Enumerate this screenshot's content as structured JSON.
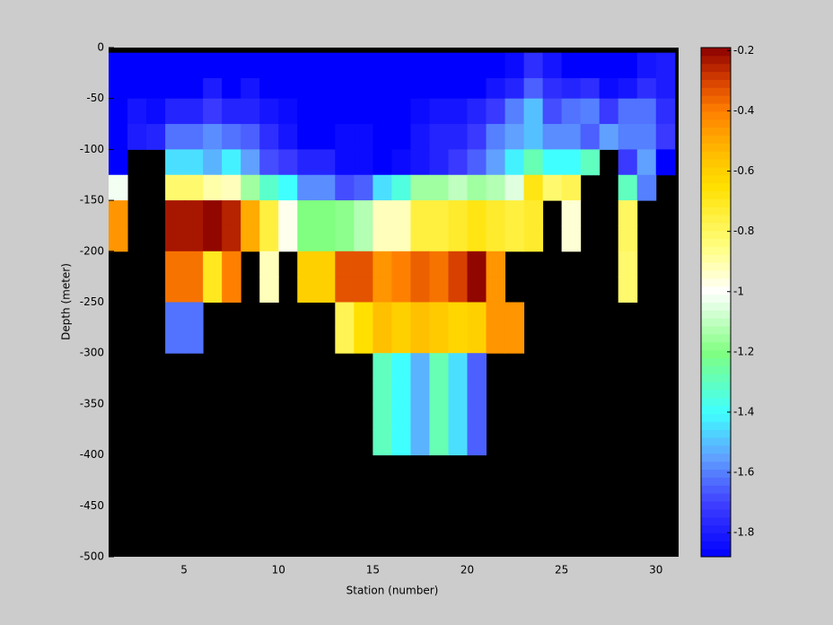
{
  "chart_data": {
    "type": "heatmap",
    "xlabel": "Station (number)",
    "ylabel": "Depth (meter)",
    "xlim": [
      1,
      31.2
    ],
    "ylim": [
      -500,
      0
    ],
    "xticks": [
      5,
      10,
      15,
      20,
      25,
      30
    ],
    "yticks": [
      0,
      -50,
      -100,
      -150,
      -200,
      -250,
      -300,
      -350,
      -400,
      -450,
      -500
    ],
    "x_edges": [
      1,
      2,
      3,
      4,
      5,
      6,
      7,
      8,
      9,
      10,
      11,
      12,
      13,
      14,
      15,
      16,
      17,
      18,
      19,
      20,
      21,
      22,
      23,
      24,
      25,
      26,
      27,
      28,
      29,
      30,
      31
    ],
    "y_edges": [
      0,
      -5,
      -30,
      -50,
      -75,
      -100,
      -125,
      -150,
      -175,
      -200,
      -225,
      -250,
      -275,
      -300,
      -325,
      -350,
      -375,
      -400
    ],
    "missing_color": "#000000",
    "clim": [
      -1.88,
      -0.19
    ],
    "colorbar_ticks": [
      -0.2,
      -0.4,
      -0.6,
      -0.8,
      -1,
      -1.2,
      -1.4,
      -1.6,
      -1.8
    ],
    "colormap": [
      [
        -1.88,
        "#0000ff"
      ],
      [
        -1.7,
        "#4040ff"
      ],
      [
        -1.55,
        "#60a0ff"
      ],
      [
        -1.4,
        "#40ffff"
      ],
      [
        -1.2,
        "#80ff80"
      ],
      [
        -1.0,
        "#ffffff"
      ],
      [
        -0.85,
        "#ffff80"
      ],
      [
        -0.65,
        "#ffe000"
      ],
      [
        -0.55,
        "#ffc000"
      ],
      [
        -0.4,
        "#ff8000"
      ],
      [
        -0.3,
        "#d84000"
      ],
      [
        -0.19,
        "#8b0000"
      ]
    ],
    "values": [
      [
        null,
        null,
        null,
        null,
        null,
        null,
        null,
        null,
        null,
        null,
        null,
        null,
        null,
        null,
        null,
        null,
        null,
        null,
        null,
        null,
        null,
        null,
        null,
        null,
        null,
        null,
        null,
        null,
        null,
        null
      ],
      [
        -1.88,
        -1.88,
        -1.88,
        -1.88,
        -1.88,
        -1.88,
        -1.88,
        -1.88,
        -1.88,
        -1.88,
        -1.88,
        -1.88,
        -1.88,
        -1.88,
        -1.88,
        -1.88,
        -1.88,
        -1.88,
        -1.88,
        -1.88,
        -1.88,
        -1.85,
        -1.75,
        -1.82,
        -1.88,
        -1.88,
        -1.88,
        -1.88,
        -1.82,
        -1.8
      ],
      [
        -1.88,
        -1.88,
        -1.88,
        -1.88,
        -1.88,
        -1.8,
        -1.88,
        -1.82,
        -1.88,
        -1.88,
        -1.88,
        -1.88,
        -1.88,
        -1.88,
        -1.88,
        -1.88,
        -1.88,
        -1.88,
        -1.88,
        -1.88,
        -1.82,
        -1.78,
        -1.65,
        -1.75,
        -1.78,
        -1.75,
        -1.85,
        -1.82,
        -1.75,
        -1.8
      ],
      [
        -1.88,
        -1.82,
        -1.85,
        -1.78,
        -1.78,
        -1.72,
        -1.78,
        -1.78,
        -1.82,
        -1.85,
        -1.88,
        -1.88,
        -1.88,
        -1.88,
        -1.88,
        -1.88,
        -1.85,
        -1.82,
        -1.82,
        -1.78,
        -1.72,
        -1.6,
        -1.5,
        -1.68,
        -1.62,
        -1.6,
        -1.72,
        -1.62,
        -1.62,
        -1.75
      ],
      [
        -1.88,
        -1.8,
        -1.78,
        -1.62,
        -1.62,
        -1.58,
        -1.62,
        -1.65,
        -1.75,
        -1.82,
        -1.88,
        -1.88,
        -1.85,
        -1.85,
        -1.88,
        -1.88,
        -1.82,
        -1.78,
        -1.78,
        -1.72,
        -1.6,
        -1.55,
        -1.5,
        -1.58,
        -1.58,
        -1.65,
        -1.55,
        -1.6,
        -1.6,
        -1.72
      ],
      [
        -1.88,
        null,
        null,
        -1.45,
        -1.45,
        -1.52,
        -1.42,
        -1.55,
        -1.68,
        -1.72,
        -1.78,
        -1.78,
        -1.85,
        -1.85,
        -1.88,
        -1.85,
        -1.82,
        -1.78,
        -1.72,
        -1.65,
        -1.55,
        -1.42,
        -1.28,
        -1.4,
        -1.4,
        -1.3,
        null,
        -1.72,
        -1.55,
        -1.88
      ],
      [
        -1.02,
        null,
        null,
        -0.82,
        -0.82,
        -0.9,
        -0.92,
        -1.15,
        -1.32,
        -1.4,
        -1.58,
        -1.58,
        -1.68,
        -1.65,
        -1.45,
        -1.35,
        -1.15,
        -1.15,
        -1.1,
        -1.15,
        -1.12,
        -1.05,
        -0.68,
        -0.82,
        -0.78,
        null,
        null,
        -1.3,
        -1.6,
        null
      ],
      [
        -0.45,
        null,
        null,
        -0.23,
        -0.23,
        -0.2,
        -0.25,
        -0.5,
        -0.75,
        -0.98,
        -1.2,
        -1.2,
        -1.18,
        -1.12,
        -0.92,
        -0.92,
        -0.75,
        -0.75,
        -0.72,
        -0.68,
        -0.72,
        -0.75,
        -0.72,
        null,
        -0.95,
        null,
        null,
        -0.8,
        null,
        null
      ],
      [
        -0.45,
        null,
        null,
        -0.23,
        -0.23,
        -0.2,
        -0.25,
        -0.5,
        -0.75,
        -0.98,
        -1.2,
        -1.2,
        -1.18,
        -1.12,
        -0.92,
        -0.92,
        -0.75,
        -0.75,
        -0.72,
        -0.68,
        -0.72,
        -0.75,
        -0.72,
        null,
        -0.95,
        null,
        null,
        -0.8,
        null,
        null
      ],
      [
        null,
        null,
        null,
        -0.38,
        -0.38,
        -0.7,
        -0.4,
        null,
        -0.92,
        null,
        -0.6,
        -0.6,
        -0.33,
        -0.33,
        -0.45,
        -0.4,
        -0.35,
        -0.38,
        -0.3,
        -0.2,
        -0.45,
        null,
        null,
        null,
        null,
        null,
        null,
        -0.82,
        null,
        null
      ],
      [
        null,
        null,
        null,
        -0.38,
        -0.38,
        -0.7,
        -0.4,
        null,
        -0.92,
        null,
        -0.6,
        -0.6,
        -0.33,
        -0.33,
        -0.45,
        -0.4,
        -0.35,
        -0.38,
        -0.3,
        -0.2,
        -0.45,
        null,
        null,
        null,
        null,
        null,
        null,
        -0.82,
        null,
        null
      ],
      [
        null,
        null,
        null,
        -1.62,
        -1.62,
        null,
        null,
        null,
        null,
        null,
        null,
        null,
        -0.78,
        -0.65,
        -0.55,
        -0.6,
        -0.55,
        -0.58,
        -0.62,
        -0.6,
        -0.45,
        -0.45,
        null,
        null,
        null,
        null,
        null,
        null,
        null,
        null
      ],
      [
        null,
        null,
        null,
        -1.62,
        -1.62,
        null,
        null,
        null,
        null,
        null,
        null,
        null,
        -0.78,
        -0.65,
        -0.55,
        -0.6,
        -0.55,
        -0.58,
        -0.62,
        -0.6,
        -0.45,
        -0.45,
        null,
        null,
        null,
        null,
        null,
        null,
        null,
        null
      ],
      [
        null,
        null,
        null,
        null,
        null,
        null,
        null,
        null,
        null,
        null,
        null,
        null,
        null,
        null,
        -1.3,
        -1.4,
        -1.52,
        -1.28,
        -1.45,
        -1.65,
        null,
        null,
        null,
        null,
        null,
        null,
        null,
        null,
        null,
        null
      ],
      [
        null,
        null,
        null,
        null,
        null,
        null,
        null,
        null,
        null,
        null,
        null,
        null,
        null,
        null,
        -1.3,
        -1.4,
        -1.52,
        -1.28,
        -1.45,
        -1.65,
        null,
        null,
        null,
        null,
        null,
        null,
        null,
        null,
        null,
        null
      ],
      [
        null,
        null,
        null,
        null,
        null,
        null,
        null,
        null,
        null,
        null,
        null,
        null,
        null,
        null,
        -1.3,
        -1.4,
        -1.52,
        -1.28,
        -1.45,
        -1.65,
        null,
        null,
        null,
        null,
        null,
        null,
        null,
        null,
        null,
        null
      ],
      [
        null,
        null,
        null,
        null,
        null,
        null,
        null,
        null,
        null,
        null,
        null,
        null,
        null,
        null,
        -1.3,
        -1.4,
        -1.52,
        -1.28,
        -1.45,
        -1.65,
        null,
        null,
        null,
        null,
        null,
        null,
        null,
        null,
        null,
        null
      ]
    ]
  }
}
